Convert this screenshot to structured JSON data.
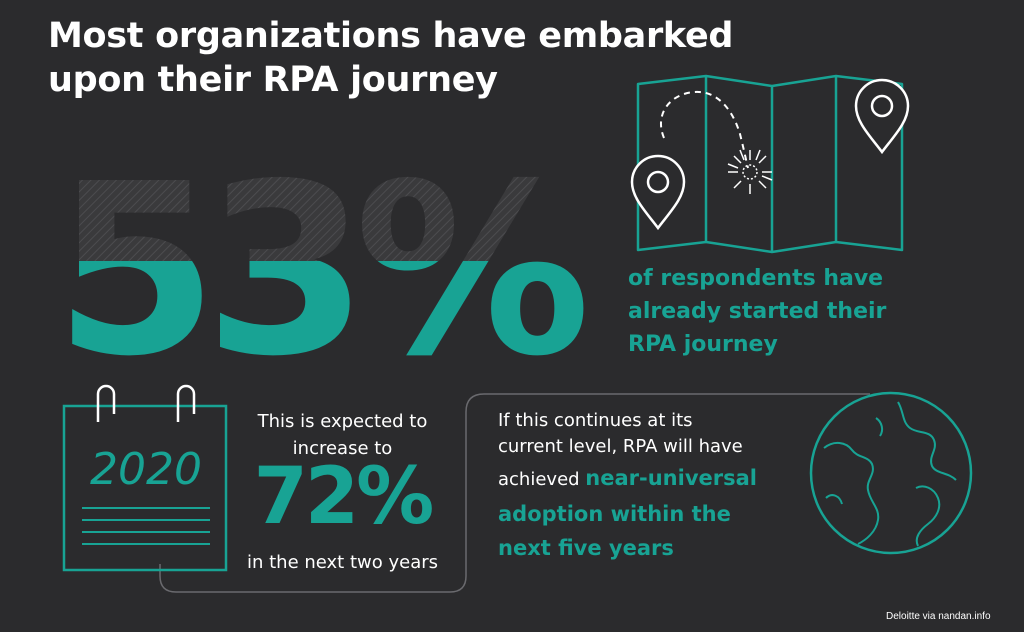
{
  "header": {
    "title_line1": "Most organizations have embarked",
    "title_line2": "upon their RPA journey"
  },
  "stat_main": {
    "value": "53%",
    "fill_fraction": 0.53,
    "caption_line1": "of respondents have",
    "caption_line2": "already started their",
    "caption_line3": "RPA journey"
  },
  "calendar": {
    "year": "2020"
  },
  "stat_future": {
    "intro_line1": "This is expected to",
    "intro_line2": "increase to",
    "value": "72%",
    "outro": "in the next two years"
  },
  "projection": {
    "line1": "If this continues at its",
    "line2": "current level, RPA will have",
    "line3_plain": "achieved ",
    "line3_bold": "near-universal",
    "line4_bold": "adoption within the",
    "line5_bold": "next five years"
  },
  "footer": {
    "credit": "Deloitte via nandan.info"
  },
  "colors": {
    "background": "#2b2b2d",
    "accent": "#18a394",
    "text": "#ffffff"
  },
  "icons": [
    "map-icon",
    "location-pin-icon",
    "burst-icon",
    "calendar-icon",
    "globe-icon"
  ]
}
